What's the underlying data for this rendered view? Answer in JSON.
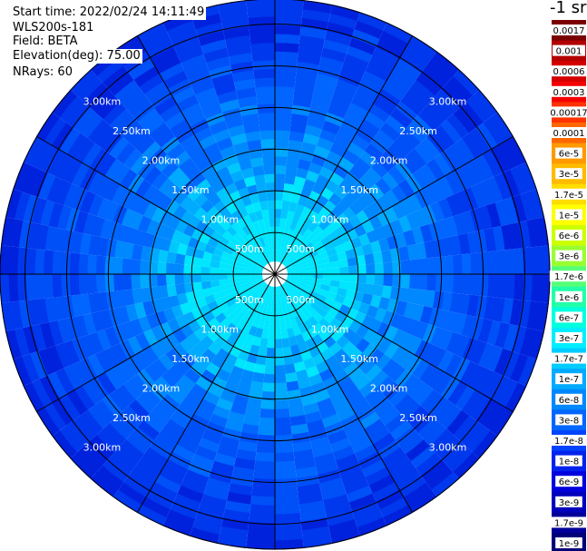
{
  "header": {
    "start_time": "Start time: 2022/02/24 14:11:49",
    "instrument": "WLS200s-181",
    "field": "Field: BETA",
    "elevation": "Elevation(deg): 75.00",
    "nrays": "NRays: 60"
  },
  "colorbar": {
    "unit_label": "-1 sr",
    "labels": [
      "0.0017",
      "0.001",
      "0.0006",
      "0.0003",
      "0.00017",
      "0.0001",
      "6e-5",
      "3e-5",
      "1.7e-5",
      "1e-5",
      "6e-6",
      "3e-6",
      "1.7e-6",
      "1e-6",
      "6e-7",
      "3e-7",
      "1.7e-7",
      "1e-7",
      "6e-8",
      "3e-8",
      "1.7e-8",
      "1e-8",
      "6e-9",
      "3e-9",
      "1.7e-9",
      "1e-9"
    ],
    "colors": [
      "#7a0000",
      "#b30000",
      "#d40000",
      "#f50000",
      "#ff3300",
      "#ff6600",
      "#ff9900",
      "#ffbb00",
      "#ffdd00",
      "#ffff00",
      "#ccff00",
      "#99ff33",
      "#55ff77",
      "#22ffaa",
      "#00ffdd",
      "#00eeff",
      "#00ccff",
      "#00aaff",
      "#0088ff",
      "#0066ff",
      "#0044ff",
      "#0022ee",
      "#0000dd",
      "#0000bb",
      "#000099",
      "#000077"
    ]
  },
  "chart_data": {
    "type": "heatmap",
    "projection": "polar plan position indicator",
    "field": "BETA",
    "n_rays": 60,
    "range_ring_labels": [
      "500m",
      "1.00km",
      "1.50km",
      "2.00km",
      "2.50km",
      "3.00km"
    ],
    "max_range_km": 3.3,
    "spoke_step_deg": 30,
    "value_levels": [
      "1e-9",
      "1e-8",
      "1e-7",
      "1e-6",
      "1e-5",
      "0.0001",
      "0.001"
    ],
    "observed_value_range": [
      "1e-9",
      "1.7e-7"
    ],
    "pattern": "backscatter highest near center (about 1e-7, cyan) decreasing to about 1e-9 to 1e-8 (blue) at outer ranges"
  }
}
